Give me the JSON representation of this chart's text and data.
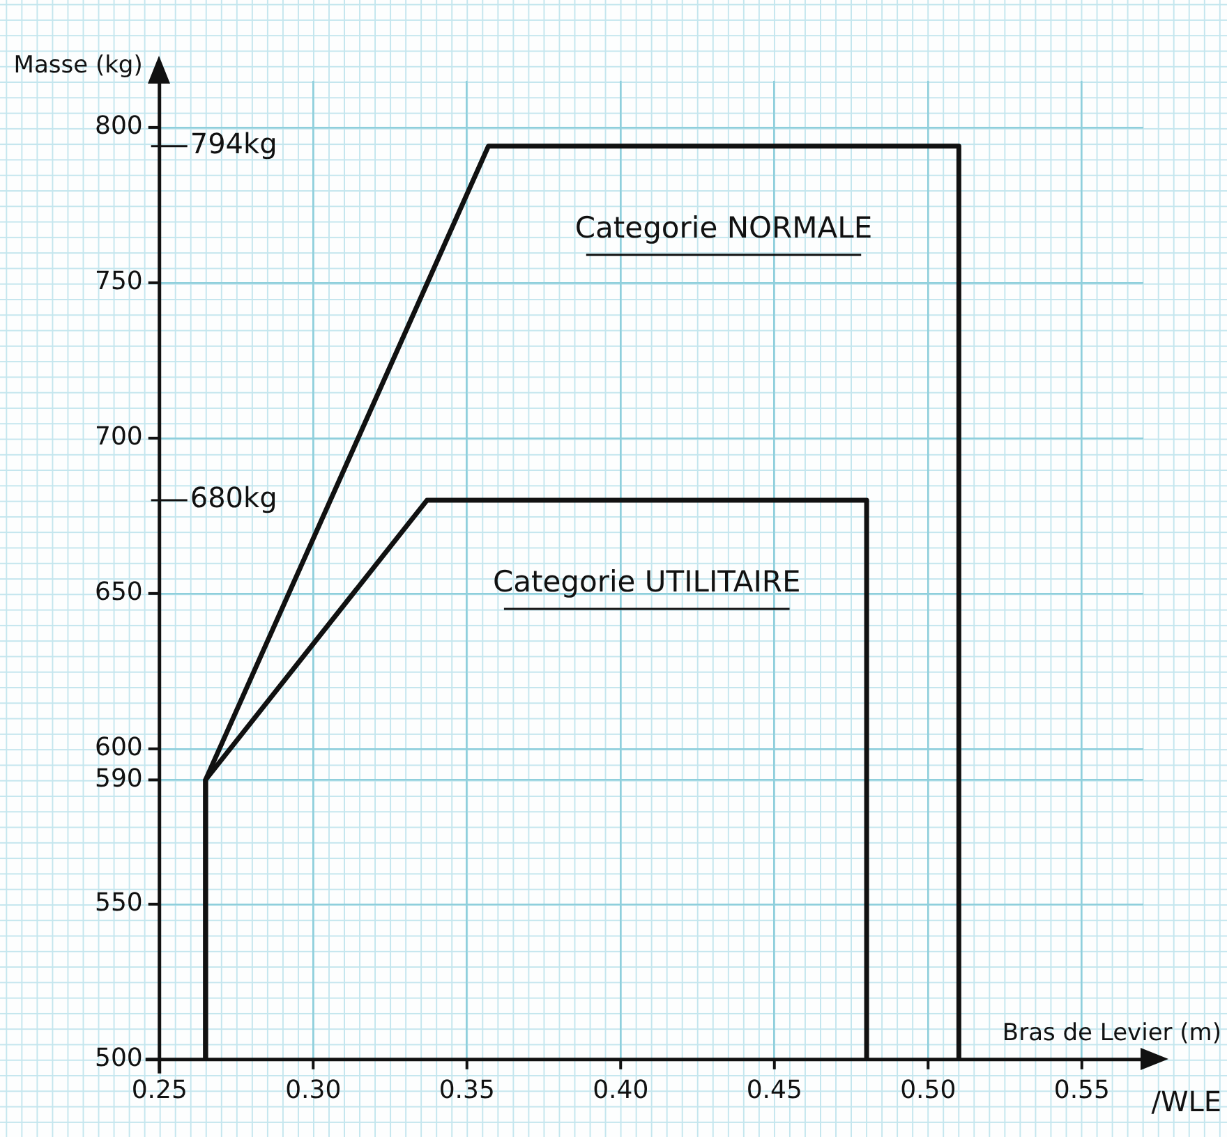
{
  "chart_data": {
    "type": "line",
    "xlabel": "Bras de Levier (m)",
    "ylabel": "Masse (kg)",
    "series": [
      {
        "name": "Categorie NORMALE",
        "color": "#111111",
        "x": [
          0.265,
          0.265,
          0.357,
          0.51,
          0.51
        ],
        "values": [
          500,
          590,
          794,
          794,
          500
        ]
      },
      {
        "name": "Categorie UTILITAIRE",
        "color": "#111111",
        "x": [
          0.265,
          0.265,
          0.337,
          0.48,
          0.48
        ],
        "values": [
          500,
          590,
          680,
          680,
          500
        ]
      }
    ],
    "xlim": [
      0.25,
      0.57
    ],
    "ylim": [
      500,
      815
    ],
    "xticks": [
      0.25,
      {
        "value": 0.3,
        "label": "0.30"
      },
      0.35,
      {
        "value": 0.4,
        "label": "0.40"
      },
      0.45,
      {
        "value": 0.5,
        "label": "0.50"
      },
      0.55
    ],
    "yticks": [
      500,
      550,
      {
        "value": 590,
        "label": "590"
      },
      600,
      650,
      700,
      750,
      800
    ],
    "ref_lines": [
      {
        "axis": "y",
        "value": 794,
        "label": "794kg"
      },
      {
        "axis": "y",
        "value": 680,
        "label": "680kg"
      }
    ],
    "annotations": [
      "/WLE"
    ],
    "grid": true,
    "legend": false,
    "marker": "none",
    "line_style": "solid"
  }
}
